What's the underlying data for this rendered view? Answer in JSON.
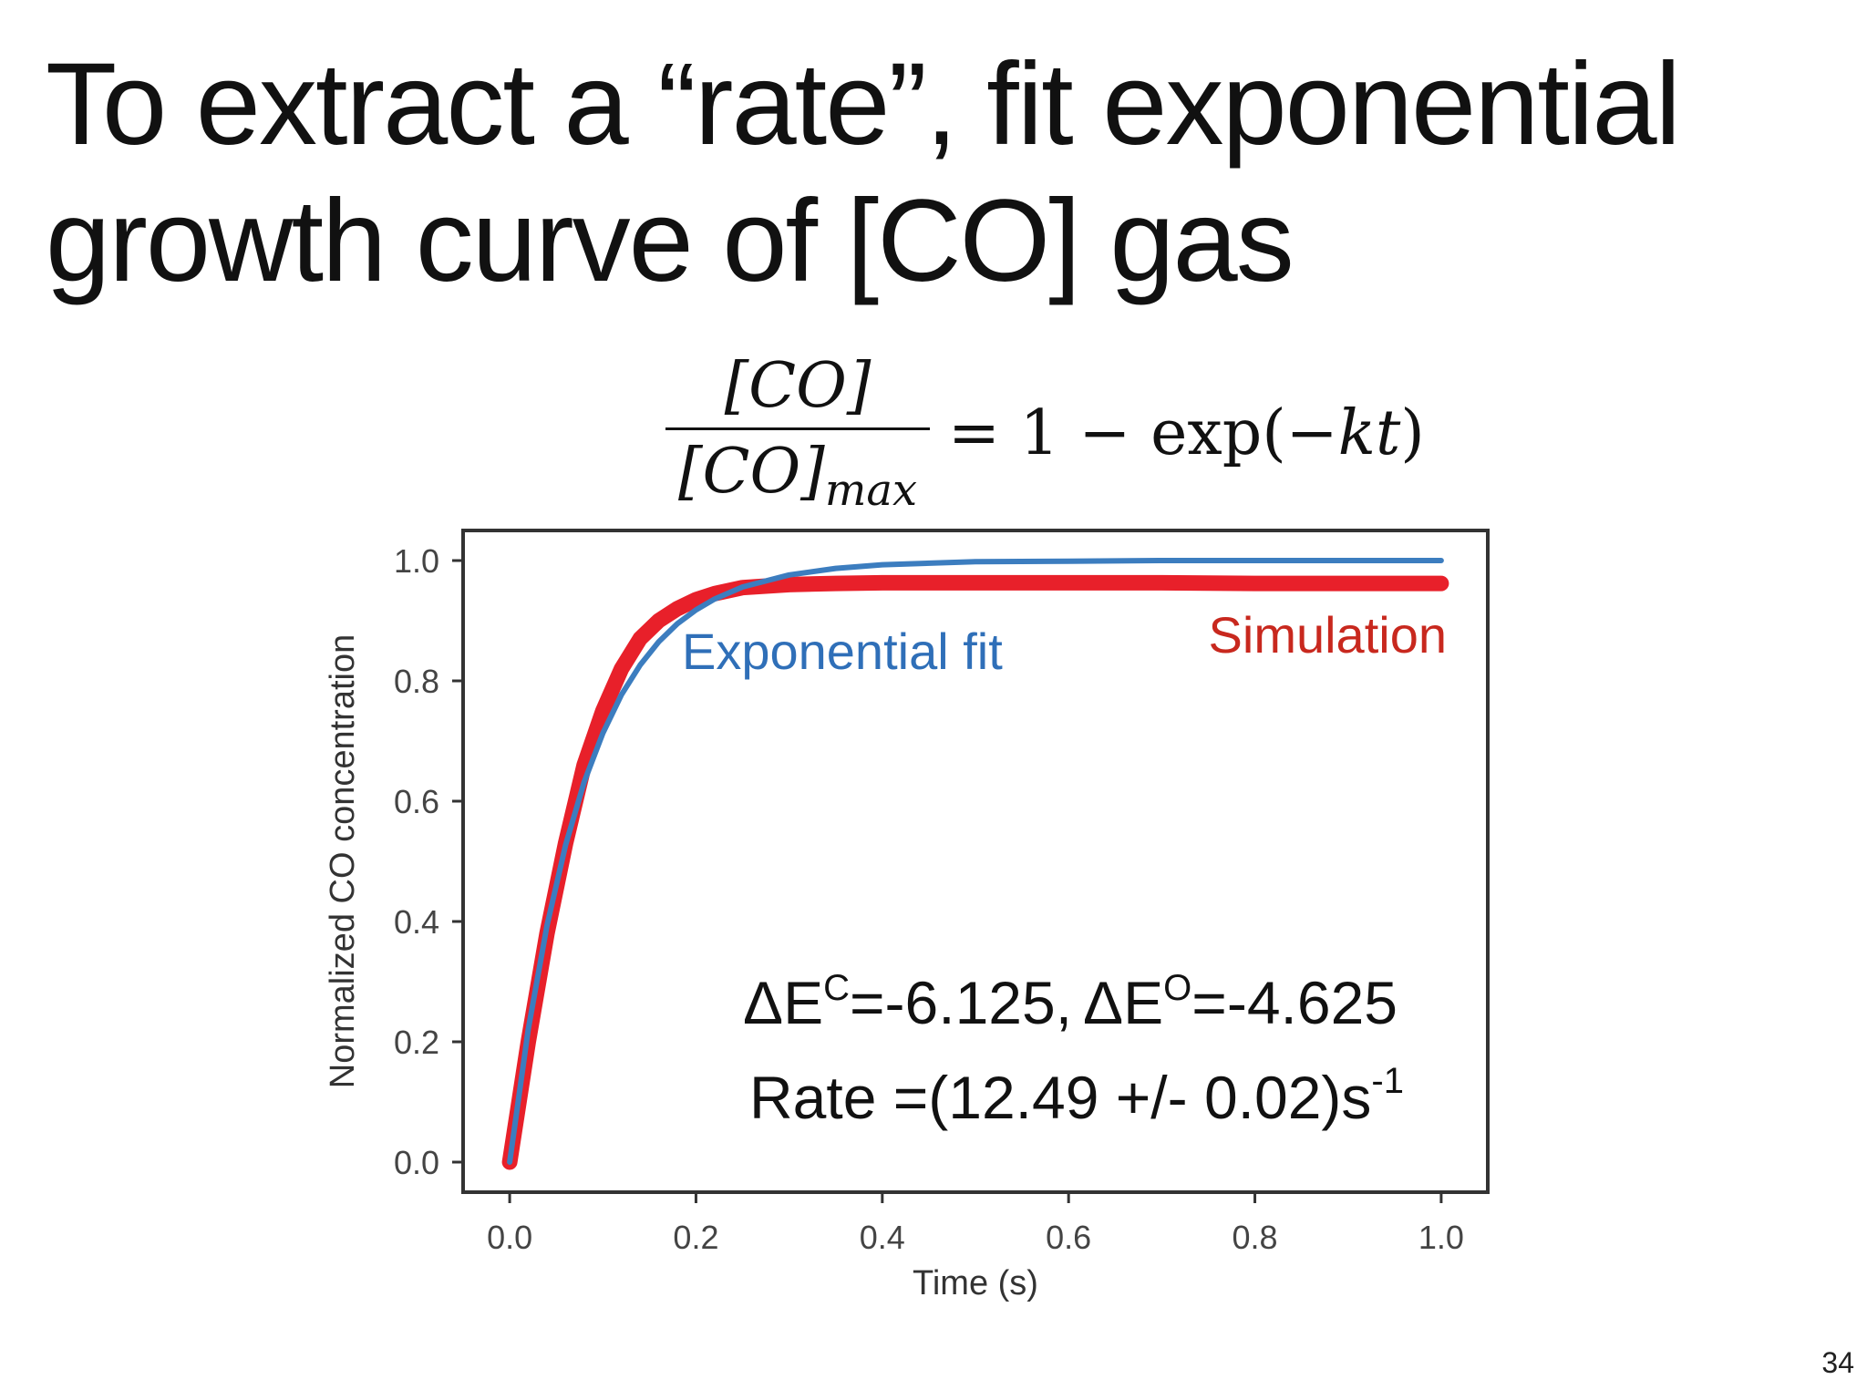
{
  "slide": {
    "title_line1": "To extract a “rate”, fit exponential",
    "title_line2": "growth curve of [CO] gas",
    "page_number": "34"
  },
  "equation": {
    "numerator": "[CO]",
    "denominator": "[CO]",
    "denominator_subscript": "max",
    "rhs_prefix": "= 1 − exp(−",
    "rhs_var": "kt",
    "rhs_suffix": ")"
  },
  "annotations": {
    "delta_symbol": "Δ",
    "e_letter": "E",
    "c_sup": "C",
    "delta_ec_value": "=-6.125,",
    "o_sup": "O",
    "delta_eo_value": "=-4.625",
    "rate_prefix": "Rate =(12.49 +/- 0.02)s",
    "rate_sup": "-1"
  },
  "colors": {
    "fit": "#3c7dbf",
    "simulation": "#e8202a",
    "fit_label": "#2f6fb8",
    "simulation_label": "#c8281e",
    "axis": "#333333"
  },
  "chart_data": {
    "type": "line",
    "title": "",
    "xlabel": "Time (s)",
    "ylabel": "Normalized CO concentration",
    "xlim": [
      -0.05,
      1.05
    ],
    "ylim": [
      -0.05,
      1.05
    ],
    "xticks": [
      0.0,
      0.2,
      0.4,
      0.6,
      0.8,
      1.0
    ],
    "yticks": [
      0.0,
      0.2,
      0.4,
      0.6,
      0.8,
      1.0
    ],
    "xtick_labels": [
      "0.0",
      "0.2",
      "0.4",
      "0.6",
      "0.8",
      "1.0"
    ],
    "ytick_labels": [
      "0.0",
      "0.2",
      "0.4",
      "0.6",
      "0.8",
      "1.0"
    ],
    "grid": false,
    "series": [
      {
        "name": "Simulation",
        "x": [
          0.0,
          0.02,
          0.04,
          0.06,
          0.08,
          0.1,
          0.12,
          0.14,
          0.16,
          0.18,
          0.2,
          0.22,
          0.25,
          0.3,
          0.35,
          0.4,
          0.5,
          0.6,
          0.7,
          0.8,
          0.9,
          1.0
        ],
        "y": [
          0.0,
          0.2,
          0.38,
          0.53,
          0.66,
          0.75,
          0.82,
          0.87,
          0.9,
          0.92,
          0.935,
          0.945,
          0.955,
          0.96,
          0.962,
          0.963,
          0.963,
          0.963,
          0.963,
          0.962,
          0.962,
          0.962
        ]
      },
      {
        "name": "Exponential fit",
        "x": [
          0.0,
          0.02,
          0.04,
          0.06,
          0.08,
          0.1,
          0.12,
          0.14,
          0.16,
          0.18,
          0.2,
          0.22,
          0.25,
          0.3,
          0.35,
          0.4,
          0.5,
          0.6,
          0.7,
          0.8,
          0.9,
          1.0
        ],
        "y": [
          0.0,
          0.221,
          0.393,
          0.527,
          0.632,
          0.713,
          0.777,
          0.826,
          0.865,
          0.895,
          0.918,
          0.936,
          0.956,
          0.976,
          0.987,
          0.993,
          0.998,
          0.999,
          1.0,
          1.0,
          1.0,
          1.0
        ]
      }
    ]
  }
}
